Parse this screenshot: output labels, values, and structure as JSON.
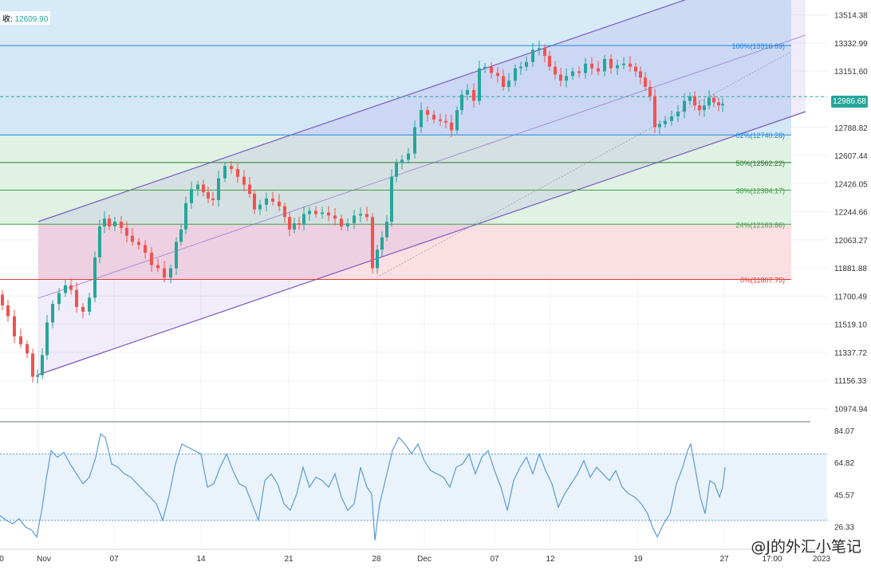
{
  "header": {
    "close_label": "收:",
    "close_value": "12609.90"
  },
  "price_tag": "12986.68",
  "watermark": "@J的外汇小笔记",
  "colors": {
    "up": "#26a69a",
    "down": "#ef5350",
    "channel": "#7e57c2",
    "rsi": "#5b9bd5"
  },
  "chart_data": [
    {
      "type": "candlestick",
      "title": "",
      "yaxis_ticks": [
        13514.38,
        13332.99,
        13151.6,
        12970.21,
        12788.82,
        12607.44,
        12426.05,
        12244.66,
        12063.27,
        11881.88,
        11700.49,
        11519.1,
        11337.72,
        11156.33,
        10974.94
      ],
      "yaxis_tick_labels": [
        "13514.38",
        "13332.99",
        "13151.60",
        "",
        "12788.82",
        "12607.44",
        "12426.05",
        "12244.66",
        "12063.27",
        "11881.88",
        "11700.49",
        "11519.10",
        "11337.72",
        "11156.33",
        "10974.94"
      ],
      "ylim": [
        10900,
        13590
      ],
      "last_price": 12986.68,
      "x_tick_labels": [
        "0",
        "Nov",
        "07",
        "14",
        "21",
        "28",
        "Dec",
        "07",
        "12",
        "19",
        "27",
        "17:00",
        "2023"
      ],
      "fib_levels": [
        {
          "label": "100%(13316.69)",
          "value": 13316.69,
          "color": "#1e88e5"
        },
        {
          "label": "62%(12740.28)",
          "value": 12740.28,
          "color": "#1e88e5"
        },
        {
          "label": "50%(12562.22)",
          "value": 12562.22,
          "color": "#2e7d32"
        },
        {
          "label": "38%(12384.17)",
          "value": 12384.17,
          "color": "#43a047"
        },
        {
          "label": "24%(12163.86)",
          "value": 12163.86,
          "color": "#43a047"
        },
        {
          "label": "0%(11807.75)",
          "value": 11807.75,
          "color": "#e53935"
        }
      ],
      "price_path": [
        [
          0,
          11710
        ],
        [
          6,
          11640
        ],
        [
          14,
          11570
        ],
        [
          22,
          11440
        ],
        [
          30,
          11390
        ],
        [
          38,
          11330
        ],
        [
          44,
          11180
        ],
        [
          50,
          11190
        ],
        [
          56,
          11320
        ],
        [
          62,
          11530
        ],
        [
          70,
          11650
        ],
        [
          78,
          11720
        ],
        [
          86,
          11770
        ],
        [
          92,
          11740
        ],
        [
          100,
          11630
        ],
        [
          108,
          11600
        ],
        [
          116,
          11690
        ],
        [
          122,
          11950
        ],
        [
          128,
          12150
        ],
        [
          134,
          12200
        ],
        [
          140,
          12150
        ],
        [
          148,
          12180
        ],
        [
          156,
          12140
        ],
        [
          162,
          12090
        ],
        [
          170,
          12050
        ],
        [
          178,
          12030
        ],
        [
          186,
          11980
        ],
        [
          194,
          11900
        ],
        [
          202,
          11880
        ],
        [
          210,
          11820
        ],
        [
          218,
          11880
        ],
        [
          224,
          12050
        ],
        [
          230,
          12130
        ],
        [
          236,
          12300
        ],
        [
          244,
          12390
        ],
        [
          252,
          12420
        ],
        [
          258,
          12370
        ],
        [
          264,
          12330
        ],
        [
          270,
          12320
        ],
        [
          278,
          12460
        ],
        [
          286,
          12540
        ],
        [
          294,
          12520
        ],
        [
          302,
          12470
        ],
        [
          310,
          12420
        ],
        [
          316,
          12360
        ],
        [
          322,
          12260
        ],
        [
          330,
          12290
        ],
        [
          338,
          12330
        ],
        [
          346,
          12310
        ],
        [
          354,
          12280
        ],
        [
          360,
          12210
        ],
        [
          366,
          12130
        ],
        [
          372,
          12170
        ],
        [
          378,
          12160
        ],
        [
          384,
          12230
        ],
        [
          392,
          12250
        ],
        [
          400,
          12230
        ],
        [
          408,
          12240
        ],
        [
          416,
          12220
        ],
        [
          424,
          12200
        ],
        [
          432,
          12150
        ],
        [
          440,
          12170
        ],
        [
          448,
          12220
        ],
        [
          456,
          12230
        ],
        [
          464,
          12210
        ],
        [
          470,
          11880
        ],
        [
          476,
          12000
        ],
        [
          482,
          12080
        ],
        [
          488,
          12180
        ],
        [
          494,
          12470
        ],
        [
          500,
          12560
        ],
        [
          508,
          12580
        ],
        [
          516,
          12620
        ],
        [
          524,
          12790
        ],
        [
          532,
          12900
        ],
        [
          540,
          12870
        ],
        [
          548,
          12840
        ],
        [
          556,
          12830
        ],
        [
          562,
          12820
        ],
        [
          570,
          12770
        ],
        [
          576,
          12900
        ],
        [
          582,
          13000
        ],
        [
          590,
          13030
        ],
        [
          598,
          12960
        ],
        [
          604,
          13170
        ],
        [
          612,
          13180
        ],
        [
          620,
          13140
        ],
        [
          628,
          13120
        ],
        [
          634,
          13050
        ],
        [
          642,
          13090
        ],
        [
          650,
          13170
        ],
        [
          656,
          13180
        ],
        [
          664,
          13210
        ],
        [
          672,
          13290
        ],
        [
          680,
          13300
        ],
        [
          686,
          13250
        ],
        [
          692,
          13180
        ],
        [
          700,
          13130
        ],
        [
          706,
          13090
        ],
        [
          714,
          13120
        ],
        [
          722,
          13150
        ],
        [
          730,
          13140
        ],
        [
          738,
          13200
        ],
        [
          746,
          13170
        ],
        [
          754,
          13150
        ],
        [
          762,
          13230
        ],
        [
          770,
          13170
        ],
        [
          778,
          13190
        ],
        [
          786,
          13200
        ],
        [
          794,
          13180
        ],
        [
          800,
          13150
        ],
        [
          806,
          13110
        ],
        [
          812,
          13050
        ],
        [
          818,
          12990
        ],
        [
          824,
          12790
        ],
        [
          830,
          12810
        ],
        [
          838,
          12830
        ],
        [
          846,
          12860
        ],
        [
          854,
          12890
        ],
        [
          862,
          12960
        ],
        [
          868,
          12990
        ],
        [
          874,
          12930
        ],
        [
          880,
          12900
        ],
        [
          886,
          12930
        ],
        [
          892,
          12980
        ],
        [
          898,
          12950
        ],
        [
          904,
          12930
        ],
        [
          908,
          12940
        ]
      ]
    },
    {
      "type": "line",
      "title": "",
      "yaxis_ticks": [
        84.07,
        64.82,
        45.57,
        26.33
      ],
      "yaxis_tick_labels": [
        "84.07",
        "64.82",
        "45.57",
        "26.33"
      ],
      "ylim": [
        14,
        88
      ],
      "bands": [
        70,
        30
      ],
      "series_path": [
        [
          0,
          33
        ],
        [
          8,
          30
        ],
        [
          16,
          28
        ],
        [
          24,
          31
        ],
        [
          32,
          26
        ],
        [
          40,
          24
        ],
        [
          46,
          20
        ],
        [
          52,
          35
        ],
        [
          58,
          55
        ],
        [
          64,
          72
        ],
        [
          72,
          68
        ],
        [
          80,
          71
        ],
        [
          88,
          64
        ],
        [
          96,
          58
        ],
        [
          104,
          52
        ],
        [
          112,
          56
        ],
        [
          120,
          68
        ],
        [
          126,
          82
        ],
        [
          132,
          80
        ],
        [
          140,
          64
        ],
        [
          148,
          62
        ],
        [
          156,
          58
        ],
        [
          164,
          56
        ],
        [
          172,
          52
        ],
        [
          180,
          48
        ],
        [
          188,
          44
        ],
        [
          196,
          40
        ],
        [
          204,
          30
        ],
        [
          212,
          45
        ],
        [
          220,
          64
        ],
        [
          228,
          76
        ],
        [
          236,
          74
        ],
        [
          244,
          72
        ],
        [
          252,
          70
        ],
        [
          260,
          50
        ],
        [
          268,
          52
        ],
        [
          276,
          62
        ],
        [
          284,
          70
        ],
        [
          292,
          60
        ],
        [
          300,
          52
        ],
        [
          308,
          50
        ],
        [
          316,
          40
        ],
        [
          324,
          30
        ],
        [
          332,
          54
        ],
        [
          340,
          58
        ],
        [
          348,
          52
        ],
        [
          356,
          40
        ],
        [
          364,
          36
        ],
        [
          372,
          46
        ],
        [
          380,
          62
        ],
        [
          388,
          50
        ],
        [
          396,
          56
        ],
        [
          404,
          54
        ],
        [
          412,
          50
        ],
        [
          420,
          58
        ],
        [
          428,
          44
        ],
        [
          436,
          36
        ],
        [
          444,
          40
        ],
        [
          452,
          62
        ],
        [
          460,
          50
        ],
        [
          466,
          46
        ],
        [
          470,
          18
        ],
        [
          476,
          40
        ],
        [
          484,
          56
        ],
        [
          492,
          72
        ],
        [
          500,
          80
        ],
        [
          508,
          76
        ],
        [
          516,
          70
        ],
        [
          524,
          76
        ],
        [
          532,
          66
        ],
        [
          540,
          60
        ],
        [
          548,
          58
        ],
        [
          556,
          56
        ],
        [
          564,
          50
        ],
        [
          572,
          62
        ],
        [
          580,
          64
        ],
        [
          588,
          70
        ],
        [
          596,
          58
        ],
        [
          604,
          68
        ],
        [
          612,
          72
        ],
        [
          620,
          60
        ],
        [
          628,
          50
        ],
        [
          636,
          36
        ],
        [
          644,
          54
        ],
        [
          652,
          62
        ],
        [
          660,
          68
        ],
        [
          668,
          58
        ],
        [
          676,
          70
        ],
        [
          684,
          60
        ],
        [
          692,
          52
        ],
        [
          700,
          38
        ],
        [
          708,
          46
        ],
        [
          716,
          52
        ],
        [
          724,
          58
        ],
        [
          732,
          66
        ],
        [
          740,
          56
        ],
        [
          748,
          62
        ],
        [
          756,
          58
        ],
        [
          764,
          54
        ],
        [
          772,
          60
        ],
        [
          780,
          50
        ],
        [
          788,
          46
        ],
        [
          796,
          44
        ],
        [
          804,
          40
        ],
        [
          812,
          34
        ],
        [
          818,
          26
        ],
        [
          824,
          20
        ],
        [
          832,
          28
        ],
        [
          840,
          34
        ],
        [
          848,
          52
        ],
        [
          856,
          62
        ],
        [
          862,
          72
        ],
        [
          866,
          76
        ],
        [
          872,
          60
        ],
        [
          878,
          44
        ],
        [
          884,
          34
        ],
        [
          890,
          54
        ],
        [
          896,
          52
        ],
        [
          902,
          44
        ],
        [
          906,
          50
        ],
        [
          909,
          62
        ]
      ]
    }
  ]
}
